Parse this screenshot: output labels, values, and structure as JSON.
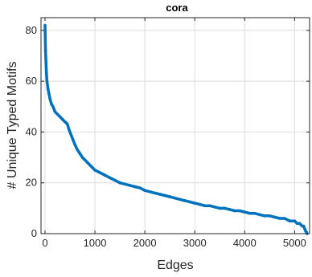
{
  "chart_data": {
    "type": "scatter",
    "title": "cora",
    "xlabel": "Edges",
    "ylabel": "# Unique Typed Motifs",
    "xlim": [
      -80,
      5300
    ],
    "ylim": [
      0,
      85
    ],
    "xticks": [
      0,
      1000,
      2000,
      3000,
      4000,
      5000
    ],
    "yticks": [
      0,
      20,
      40,
      60,
      80
    ],
    "xtick_labels": [
      "0",
      "1000",
      "2000",
      "3000",
      "4000",
      "5000"
    ],
    "ytick_labels": [
      "0",
      "20",
      "40",
      "60",
      "80"
    ],
    "grid": true,
    "series_color": "#0072BD",
    "series": [
      {
        "x": [
          0,
          5,
          10,
          20,
          30,
          40,
          60,
          80,
          100,
          130,
          160,
          200,
          250,
          300,
          350,
          400,
          430,
          450,
          480,
          520,
          560,
          600,
          650,
          700,
          750,
          800,
          850,
          900,
          950,
          1000,
          1100,
          1200,
          1300,
          1400,
          1500,
          1600,
          1700,
          1800,
          1900,
          2000,
          2100,
          2200,
          2300,
          2400,
          2500,
          2600,
          2700,
          2800,
          2900,
          3000,
          3100,
          3200,
          3300,
          3400,
          3500,
          3600,
          3700,
          3800,
          3900,
          4000,
          4100,
          4200,
          4300,
          4400,
          4500,
          4600,
          4700,
          4800,
          4900,
          5000,
          5050,
          5100,
          5150,
          5180,
          5200,
          5220,
          5240,
          5250
        ],
        "y": [
          82,
          77,
          72,
          67,
          63,
          60,
          57,
          55,
          53,
          51,
          50,
          48,
          47,
          46,
          45,
          44,
          43.5,
          43,
          41,
          39,
          37,
          35,
          33,
          31.5,
          30,
          29,
          28,
          27,
          26,
          25,
          24,
          23,
          22,
          21,
          20,
          19.5,
          19,
          18.5,
          18,
          17,
          16.5,
          16,
          15.5,
          15,
          14.5,
          14,
          13.5,
          13,
          12.5,
          12,
          11.5,
          11,
          11,
          10.5,
          10,
          10,
          9.5,
          9,
          9,
          8.5,
          8,
          8,
          7.5,
          7,
          7,
          6.5,
          6,
          6,
          5,
          5,
          4,
          4,
          3,
          3,
          2,
          1,
          0.5,
          0
        ]
      }
    ]
  }
}
